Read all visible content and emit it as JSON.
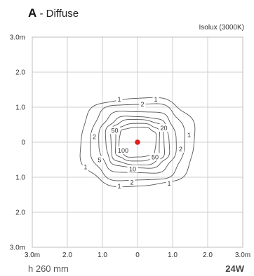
{
  "title": {
    "letter": "A",
    "separator": " - ",
    "text": "Diffuse"
  },
  "isolux_label": "Isolux (3000K)",
  "footer": {
    "height": "h 260 mm",
    "power": "24W"
  },
  "chart_data": {
    "type": "contour",
    "title": "A - Diffuse",
    "subtitle": "Isolux (3000K)",
    "xlim": [
      -3.0,
      3.0
    ],
    "ylim": [
      -3.0,
      3.0
    ],
    "x_ticks": [
      {
        "value": -3.0,
        "label": "3.0m"
      },
      {
        "value": -2.0,
        "label": "2.0"
      },
      {
        "value": -1.0,
        "label": "1.0"
      },
      {
        "value": 0,
        "label": "0"
      },
      {
        "value": 1.0,
        "label": "1.0"
      },
      {
        "value": 2.0,
        "label": "2.0"
      },
      {
        "value": 3.0,
        "label": "3.0m"
      }
    ],
    "y_ticks": [
      {
        "value": 3.0,
        "label": "3.0m"
      },
      {
        "value": 2.0,
        "label": "2.0"
      },
      {
        "value": 1.0,
        "label": "1.0"
      },
      {
        "value": 0,
        "label": "0"
      },
      {
        "value": -1.0,
        "label": "1.0"
      },
      {
        "value": -2.0,
        "label": "2.0"
      },
      {
        "value": -3.0,
        "label": "3.0m"
      }
    ],
    "grid": true,
    "center_point": {
      "x": 0,
      "y": 0,
      "color": "#e0201b"
    },
    "contours": [
      {
        "level": 1,
        "label": "1",
        "half_width": 1.58,
        "half_height": 1.23,
        "label_points": [
          [
            -0.52,
            1.22
          ],
          [
            0.52,
            1.22
          ],
          [
            0.9,
            -1.18
          ],
          [
            -0.52,
            -1.26
          ],
          [
            1.47,
            0.2
          ],
          [
            -1.48,
            -0.71
          ]
        ]
      },
      {
        "level": 2,
        "label": "2",
        "half_width": 1.28,
        "half_height": 1.09,
        "label_points": [
          [
            0.14,
            1.08
          ],
          [
            1.23,
            -0.2
          ],
          [
            -1.23,
            0.15
          ],
          [
            -0.16,
            -1.15
          ]
        ]
      },
      {
        "level": 5,
        "label": "5",
        "half_width": 1.05,
        "half_height": 0.88,
        "label_points": [
          [
            -1.08,
            -0.51
          ]
        ]
      },
      {
        "level": 10,
        "label": "10",
        "half_width": 0.88,
        "half_height": 0.72,
        "label_points": [
          [
            -0.14,
            -0.77
          ]
        ]
      },
      {
        "level": 20,
        "label": "20",
        "half_width": 0.76,
        "half_height": 0.62,
        "label_points": [
          [
            0.75,
            0.4
          ]
        ]
      },
      {
        "level": 50,
        "label": "50",
        "half_width": 0.63,
        "half_height": 0.51,
        "label_points": [
          [
            -0.65,
            0.33
          ],
          [
            0.5,
            -0.43
          ]
        ]
      },
      {
        "level": 100,
        "label": "100",
        "half_width": 0.52,
        "half_height": 0.41,
        "label_points": [
          [
            -0.41,
            -0.24
          ]
        ]
      }
    ]
  }
}
